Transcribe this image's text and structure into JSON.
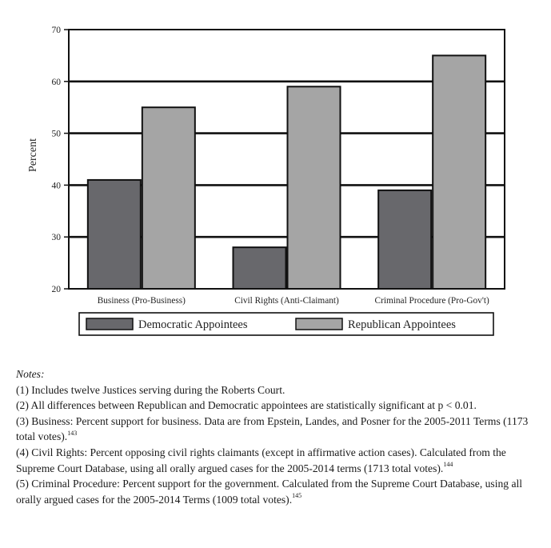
{
  "chart_data": {
    "type": "bar",
    "categories": [
      "Business (Pro-Business)",
      "Civil Rights (Anti-Claimant)",
      "Criminal Procedure (Pro-Gov't)"
    ],
    "series": [
      {
        "name": "Democratic Appointees",
        "values": [
          41,
          28,
          39
        ],
        "color": "#68686c"
      },
      {
        "name": "Republican Appointees",
        "values": [
          55,
          59,
          65
        ],
        "color": "#a5a5a5"
      }
    ],
    "ylabel": "Percent",
    "ylim": [
      20,
      70
    ],
    "yticks": [
      20,
      30,
      40,
      50,
      60,
      70
    ],
    "grid": true,
    "legend_position": "bottom"
  },
  "notes": {
    "heading": "Notes:",
    "items": [
      {
        "text": "(1) Includes twelve Justices serving during the Roberts Court.",
        "sup": ""
      },
      {
        "text": "(2) All differences between Republican and Democratic appointees are statistically significant at p < 0.01.",
        "sup": ""
      },
      {
        "text": "(3) Business: Percent support for business. Data are from Epstein, Landes, and Posner for the 2005-2011 Terms (1173 total votes).",
        "sup": "143"
      },
      {
        "text": "(4) Civil Rights: Percent opposing civil rights claimants (except in affirmative action cases). Calculated from the Supreme Court Database, using all orally argued cases for the 2005-2014 terms (1713 total votes).",
        "sup": "144"
      },
      {
        "text": "(5) Criminal Procedure: Percent support for the government. Calculated from the Supreme Court Database, using all orally argued cases for the 2005-2014 Terms (1009 total votes).",
        "sup": "145"
      }
    ]
  }
}
